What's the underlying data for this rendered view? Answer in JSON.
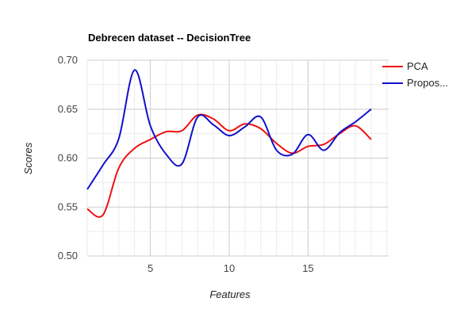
{
  "chart_data": {
    "type": "line",
    "title": "Debrecen dataset -- DecisionTree",
    "xlabel": "Features",
    "ylabel": "Scores",
    "xlim": [
      1,
      19
    ],
    "ylim": [
      0.5,
      0.7
    ],
    "x_ticks": [
      5,
      10,
      15
    ],
    "y_ticks": [
      0.5,
      0.55,
      0.6,
      0.65,
      0.7
    ],
    "y_tick_labels": [
      "0.50",
      "0.55",
      "0.60",
      "0.65",
      "0.70"
    ],
    "x_tick_labels": [
      "5",
      "10",
      "15"
    ],
    "grid": true,
    "legend_position": "right",
    "series": [
      {
        "name": "PCA",
        "color": "#ee1111",
        "x": [
          1,
          2,
          3,
          4,
          5,
          6,
          7,
          8,
          9,
          10,
          11,
          12,
          13,
          14,
          15,
          16,
          17,
          18,
          19
        ],
        "values": [
          0.548,
          0.542,
          0.59,
          0.61,
          0.619,
          0.627,
          0.628,
          0.644,
          0.64,
          0.628,
          0.635,
          0.63,
          0.615,
          0.605,
          0.612,
          0.614,
          0.625,
          0.633,
          0.619
        ]
      },
      {
        "name": "Propos...",
        "color": "#1111cc",
        "x": [
          1,
          2,
          3,
          4,
          5,
          6,
          7,
          8,
          9,
          10,
          11,
          12,
          13,
          14,
          15,
          16,
          17,
          18,
          19
        ],
        "values": [
          0.568,
          0.593,
          0.62,
          0.69,
          0.633,
          0.604,
          0.594,
          0.642,
          0.634,
          0.623,
          0.632,
          0.642,
          0.608,
          0.604,
          0.624,
          0.608,
          0.626,
          0.637,
          0.65
        ]
      }
    ]
  }
}
